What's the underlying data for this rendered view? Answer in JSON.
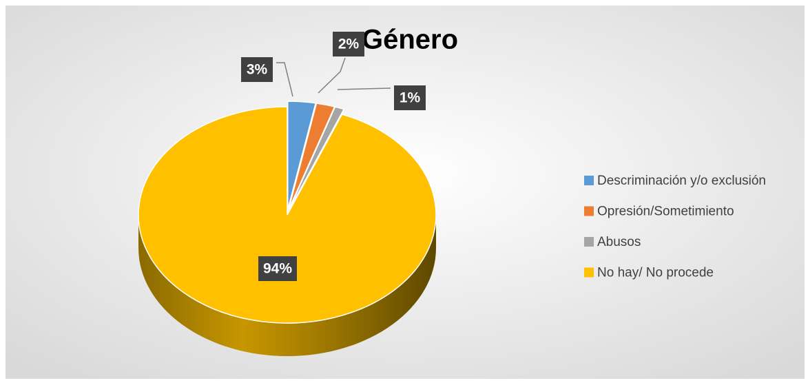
{
  "chart_data": {
    "type": "pie",
    "title": "Género",
    "categories": [
      "Descriminación y/o exclusión",
      "Opresión/Sometimiento",
      "Abusos",
      "No hay/ No procede"
    ],
    "values": [
      3,
      2,
      1,
      94
    ],
    "value_labels": [
      "3%",
      "2%",
      "1%",
      "94%"
    ],
    "colors": [
      "#5b9bd5",
      "#ed7d31",
      "#a5a5a5",
      "#ffc000"
    ],
    "legend": "right"
  }
}
